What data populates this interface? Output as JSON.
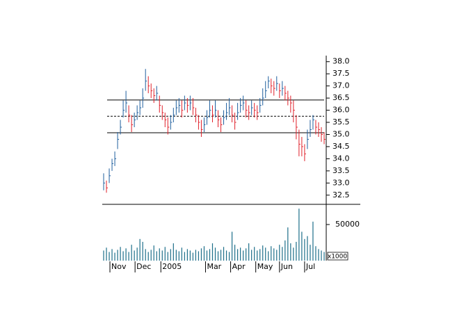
{
  "chart_data": {
    "type": "ohlc",
    "xlim": [
      -0.5,
      79.5
    ],
    "xticks": [
      {
        "value": 2.25,
        "label": "Nov"
      },
      {
        "value": 11.25,
        "label": "Dec"
      },
      {
        "value": 20.5,
        "label": "2005"
      },
      {
        "value": 36.5,
        "label": "Mar"
      },
      {
        "value": 45.5,
        "label": "Apr"
      },
      {
        "value": 54.5,
        "label": "May"
      },
      {
        "value": 63,
        "label": "Jun"
      },
      {
        "value": 72,
        "label": "Jul"
      }
    ],
    "ylim": [
      32.15,
      38.25
    ],
    "yticks": [
      {
        "value": 32.5,
        "label": "32.5"
      },
      {
        "value": 33,
        "label": "33.0"
      },
      {
        "value": 33.5,
        "label": "33.5"
      },
      {
        "value": 34,
        "label": "34.0"
      },
      {
        "value": 34.5,
        "label": "34.5"
      },
      {
        "value": 35,
        "label": "35.0"
      },
      {
        "value": 35.5,
        "label": "35.5"
      },
      {
        "value": 36,
        "label": "36.0"
      },
      {
        "value": 36.5,
        "label": "36.5"
      },
      {
        "value": 37,
        "label": "37.0"
      },
      {
        "value": 37.5,
        "label": "37.5"
      },
      {
        "value": 38,
        "label": "38.0"
      }
    ],
    "y2lim": [
      0,
      77000
    ],
    "y2ticks": [
      50000
    ],
    "volume_unit_label": "x1000",
    "up_color": "#1f5f9e",
    "down_color": "#e0202a",
    "volume_color": "#1d6f8a",
    "levels": [
      {
        "value": 36.42,
        "style": "solid"
      },
      {
        "value": 35.75,
        "style": "dashed"
      },
      {
        "value": 35.07,
        "style": "solid"
      }
    ],
    "high": [
      33.4,
      33.1,
      33.6,
      34.0,
      34.3,
      35.1,
      35.6,
      36.4,
      36.8,
      36.2,
      35.8,
      35.9,
      36.2,
      36.4,
      36.9,
      37.7,
      37.4,
      37.1,
      36.9,
      37.0,
      36.6,
      36.2,
      35.9,
      35.7,
      35.8,
      36.1,
      36.4,
      36.5,
      36.4,
      36.6,
      36.5,
      36.6,
      36.5,
      36.1,
      35.8,
      35.6,
      35.7,
      36.0,
      36.4,
      36.2,
      36.4,
      36.0,
      35.7,
      36.0,
      36.3,
      36.5,
      36.2,
      35.9,
      36.3,
      36.5,
      36.6,
      36.4,
      36.2,
      36.4,
      36.3,
      36.2,
      36.5,
      36.9,
      37.2,
      37.4,
      37.3,
      37.2,
      37.4,
      37.1,
      37.2,
      37.0,
      36.8,
      36.6,
      36.4,
      35.8,
      35.2,
      34.9,
      34.6,
      35.2,
      35.6,
      35.8,
      35.6,
      35.5,
      35.3,
      35.1
    ],
    "low": [
      32.7,
      32.6,
      33.0,
      33.5,
      33.7,
      34.4,
      35.0,
      35.7,
      35.9,
      35.5,
      35.1,
      35.3,
      35.6,
      35.8,
      36.1,
      36.8,
      36.7,
      36.5,
      36.3,
      36.4,
      35.9,
      35.6,
      35.3,
      35.0,
      35.2,
      35.5,
      35.8,
      35.9,
      35.7,
      36.0,
      35.9,
      36.0,
      35.8,
      35.5,
      35.2,
      34.9,
      35.1,
      35.4,
      35.7,
      35.5,
      35.7,
      35.3,
      35.1,
      35.4,
      35.6,
      35.8,
      35.5,
      35.2,
      35.6,
      35.9,
      36.0,
      35.7,
      35.6,
      35.8,
      35.7,
      35.6,
      35.9,
      36.2,
      36.5,
      36.9,
      36.7,
      36.6,
      36.8,
      36.5,
      36.6,
      36.4,
      36.2,
      35.9,
      35.5,
      34.8,
      34.1,
      34.1,
      33.9,
      34.4,
      34.9,
      35.2,
      35.0,
      34.9,
      34.7,
      34.6
    ],
    "close": [
      33.0,
      32.8,
      33.3,
      33.8,
      34.0,
      34.8,
      35.3,
      36.0,
      36.3,
      35.8,
      35.4,
      35.6,
      35.9,
      36.1,
      36.5,
      37.2,
      37.0,
      36.8,
      36.6,
      36.7,
      36.2,
      35.9,
      35.6,
      35.3,
      35.5,
      35.8,
      36.1,
      36.2,
      36.0,
      36.3,
      36.2,
      36.3,
      36.1,
      35.8,
      35.5,
      35.2,
      35.4,
      35.7,
      36.0,
      35.8,
      36.0,
      35.6,
      35.4,
      35.7,
      35.9,
      36.1,
      35.8,
      35.5,
      35.9,
      36.2,
      36.3,
      36.0,
      35.9,
      36.1,
      36.0,
      35.9,
      36.2,
      36.5,
      36.8,
      37.2,
      37.0,
      36.9,
      37.1,
      36.8,
      36.9,
      36.7,
      36.5,
      36.3,
      36.0,
      35.3,
      34.6,
      34.5,
      34.2,
      34.8,
      35.2,
      35.6,
      35.3,
      35.2,
      35.0,
      34.8
    ],
    "volume": [
      14000,
      18000,
      12000,
      16000,
      11000,
      15000,
      19000,
      13000,
      17000,
      12000,
      22000,
      14000,
      18000,
      30000,
      26000,
      16000,
      12000,
      15000,
      21000,
      13000,
      17000,
      14000,
      19000,
      12000,
      16000,
      24000,
      15000,
      13000,
      18000,
      12000,
      16000,
      14000,
      11000,
      15000,
      13000,
      17000,
      20000,
      14000,
      16000,
      24000,
      18000,
      13000,
      15000,
      19000,
      14000,
      12000,
      40000,
      22000,
      16000,
      18000,
      14000,
      17000,
      24000,
      15000,
      19000,
      14000,
      16000,
      21000,
      18000,
      13000,
      20000,
      17000,
      15000,
      22000,
      19000,
      28000,
      46000,
      24000,
      18000,
      26000,
      72000,
      40000,
      30000,
      34000,
      22000,
      54000,
      20000,
      16000,
      14000,
      12000
    ]
  }
}
